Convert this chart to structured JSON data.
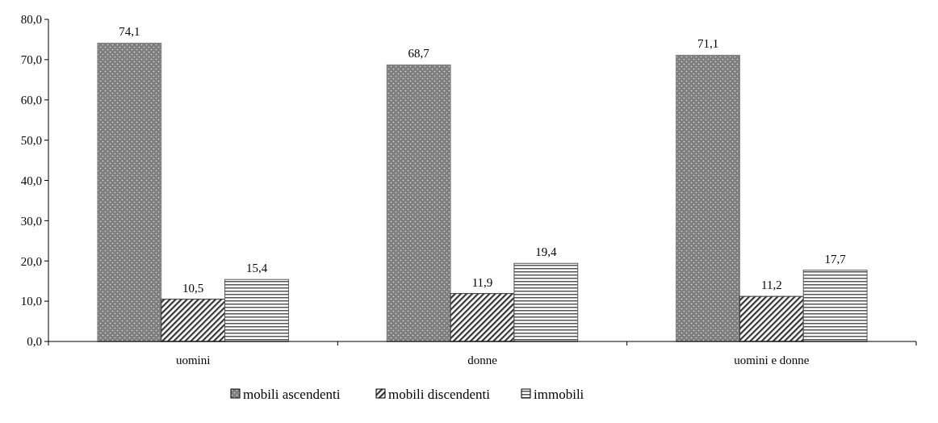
{
  "chart_data": {
    "type": "bar",
    "categories": [
      "uomini",
      "donne",
      "uomini e donne"
    ],
    "series": [
      {
        "name": "mobili ascendenti",
        "color": "#7f7f7f",
        "values": [
          74.1,
          68.7,
          71.1
        ],
        "value_labels": [
          "74,1",
          "68,7",
          "71,1"
        ]
      },
      {
        "name": "mobili discendenti",
        "color": "#333333",
        "values": [
          10.5,
          11.9,
          11.2
        ],
        "value_labels": [
          "10,5",
          "11,9",
          "11,2"
        ]
      },
      {
        "name": "immobili",
        "color": "#555555",
        "values": [
          15.4,
          19.4,
          17.7
        ],
        "value_labels": [
          "15,4",
          "19,4",
          "17,7"
        ]
      }
    ],
    "ylim": [
      0,
      80
    ],
    "yticks": [
      {
        "value": 0,
        "label": "0,0"
      },
      {
        "value": 10,
        "label": "10,0"
      },
      {
        "value": 20,
        "label": "20,0"
      },
      {
        "value": 30,
        "label": "30,0"
      },
      {
        "value": 40,
        "label": "40,0"
      },
      {
        "value": 50,
        "label": "50,0"
      },
      {
        "value": 60,
        "label": "60,0"
      },
      {
        "value": 70,
        "label": "70,0"
      },
      {
        "value": 80,
        "label": "80,0"
      }
    ],
    "grid": false,
    "legend": "bottom"
  }
}
